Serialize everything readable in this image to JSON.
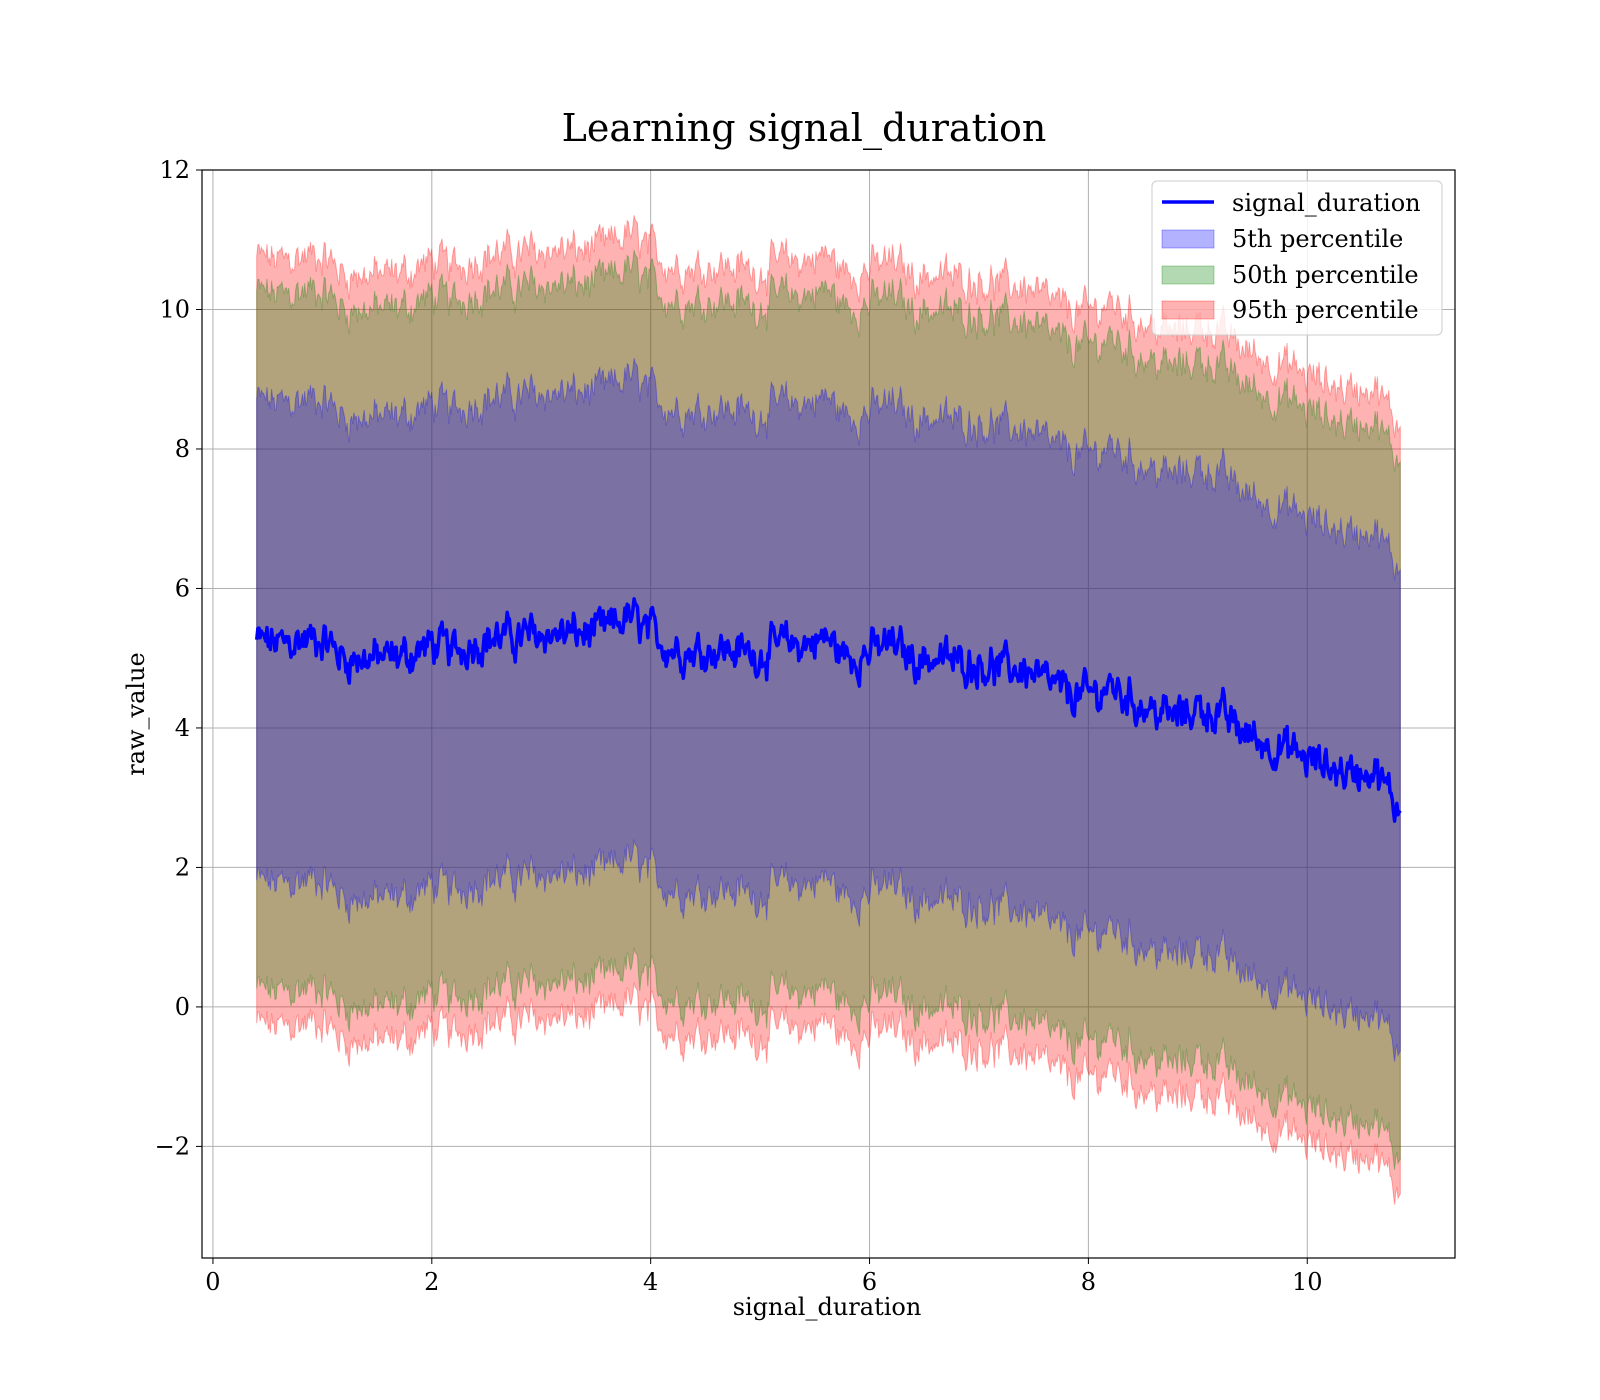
{
  "chart_data": {
    "type": "area",
    "title": "Learning signal_duration",
    "xlabel": "signal_duration",
    "ylabel": "raw_value",
    "xlim": [
      -0.1,
      11.35
    ],
    "ylim": [
      -3.6,
      12
    ],
    "x_ticks": [
      0,
      2,
      4,
      6,
      8,
      10
    ],
    "x_tick_labels": [
      "0",
      "2",
      "4",
      "6",
      "8",
      "10"
    ],
    "y_ticks": [
      -2,
      0,
      2,
      4,
      6,
      8,
      10,
      12
    ],
    "y_tick_labels": [
      "−2",
      "0",
      "2",
      "4",
      "6",
      "8",
      "10",
      "12"
    ],
    "grid": true,
    "legend_position": "top-right",
    "x_range": [
      0.4,
      10.85
    ],
    "line": {
      "name": "signal_duration",
      "color": "#0000ff",
      "x": [
        0.4,
        0.6,
        0.8,
        1.0,
        1.2,
        1.4,
        1.6,
        1.8,
        2.0,
        2.2,
        2.4,
        2.6,
        2.8,
        3.0,
        3.2,
        3.4,
        3.6,
        3.8,
        4.0,
        4.2,
        4.4,
        4.6,
        4.8,
        5.0,
        5.2,
        5.4,
        5.6,
        5.8,
        6.0,
        6.2,
        6.4,
        6.6,
        6.8,
        7.0,
        7.2,
        7.4,
        7.6,
        7.8,
        8.0,
        8.2,
        8.4,
        8.6,
        8.8,
        9.0,
        9.2,
        9.4,
        9.6,
        9.8,
        10.0,
        10.2,
        10.4,
        10.6,
        10.8
      ],
      "values": [
        5.25,
        5.2,
        5.25,
        5.3,
        5.0,
        5.0,
        5.0,
        5.05,
        5.2,
        5.1,
        5.25,
        5.3,
        5.3,
        5.35,
        5.35,
        5.35,
        5.4,
        5.6,
        5.35,
        5.15,
        5.1,
        5.15,
        5.1,
        5.05,
        5.2,
        5.2,
        5.3,
        5.0,
        5.1,
        5.2,
        5.0,
        5.0,
        4.95,
        4.95,
        4.85,
        4.85,
        4.65,
        4.5,
        4.45,
        4.6,
        4.4,
        4.25,
        4.15,
        4.3,
        4.2,
        3.95,
        3.8,
        3.7,
        3.55,
        3.45,
        3.35,
        3.45,
        2.9
      ]
    },
    "bands": [
      {
        "name": "5th percentile",
        "color": "#0000ff",
        "half_width": 3.45
      },
      {
        "name": "50th percentile",
        "color": "#008000",
        "half_width": 5.0
      },
      {
        "name": "95th percentile",
        "color": "#ff0000",
        "half_width": 5.5
      }
    ],
    "legend": [
      "signal_duration",
      "5th percentile",
      "50th percentile",
      "95th percentile"
    ]
  }
}
